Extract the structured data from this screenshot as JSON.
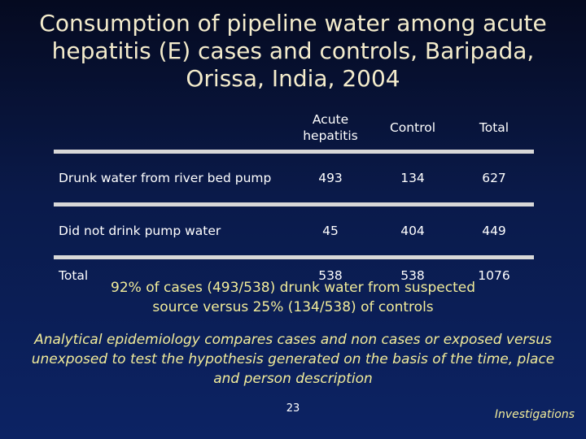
{
  "title": "Consumption of pipeline water among acute hepatitis (E) cases and controls, Baripada, Orissa, India, 2004",
  "table": {
    "headers": [
      "",
      "Acute hepatitis",
      "Control",
      "Total"
    ],
    "rows": [
      {
        "label": "Drunk water from river bed pump",
        "acute": "493",
        "control": "134",
        "total": "627"
      },
      {
        "label": "Did not drink pump water",
        "acute": "45",
        "control": "404",
        "total": "449"
      },
      {
        "label": "Total",
        "acute": "538",
        "control": "538",
        "total": "1076"
      }
    ]
  },
  "summary": "92% of cases (493/538) drunk water from suspected source versus 25% (134/538) of controls",
  "analytic_note": "Analytical epidemiology compares cases and non cases or exposed versus unexposed to test the hypothesis generated on the basis of the time, place and person description",
  "page_number": "23",
  "footer_label": "Investigations"
}
